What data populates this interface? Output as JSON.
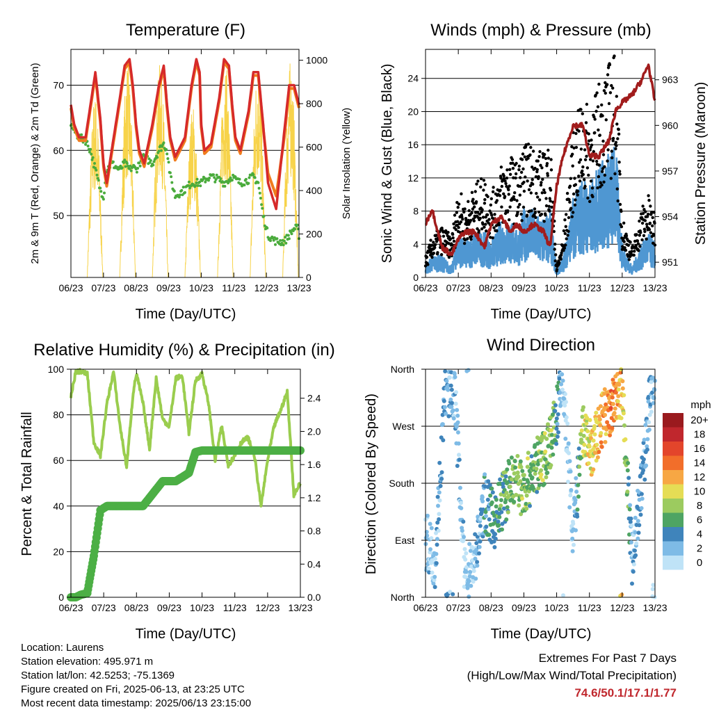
{
  "x_ticks": [
    "06/23",
    "07/23",
    "08/23",
    "09/23",
    "10/23",
    "11/23",
    "12/23",
    "13/23"
  ],
  "x_label": "Time (Day/UTC)",
  "meta": {
    "location": "Location: Laurens",
    "elevation": "Station elevation: 495.971 m",
    "latlon": "Station lat/lon: 42.5253; -75.1369",
    "created": "Figure created on Fri, 2025-06-13, at 23:25 UTC",
    "recent": "Most recent data timestamp: 2025/06/13 23:15:00"
  },
  "extremes": {
    "title": "Extremes For Past 7 Days",
    "subtitle": "(High/Low/Max Wind/Total Precipitation)",
    "value": "74.6/50.1/17.1/1.77"
  },
  "colors": {
    "temp_red": "#d62a2a",
    "temp_orange": "#f07c1e",
    "dewpoint_green": "#4aab3c",
    "solar_yellow": "#f7d34a",
    "wind_blue": "#4f97d2",
    "gust_black": "#000000",
    "pressure_maroon": "#a11c1c",
    "rh_lightgreen": "#9acd4e",
    "rain_green": "#4caf45"
  },
  "chart_data": [
    {
      "type": "line",
      "title": "Temperature (F)",
      "xlabel": "Time (Day/UTC)",
      "ylabel": "2m & 9m T (Red, Orange) & 2m Td (Green)",
      "y2label": "Solar Insolation (Yellow)",
      "ylim": [
        40.5,
        75.5
      ],
      "y2lim": [
        0,
        1050
      ],
      "yticks": [
        50,
        60,
        70
      ],
      "y2ticks": [
        0,
        200,
        400,
        600,
        800,
        1000
      ],
      "x": [
        0,
        0.1,
        0.25,
        0.45,
        0.6,
        0.75,
        0.9,
        1.0,
        1.1,
        1.25,
        1.5,
        1.65,
        1.8,
        1.9,
        2.0,
        2.1,
        2.25,
        2.5,
        2.7,
        2.85,
        2.95,
        3.05,
        3.2,
        3.5,
        3.7,
        3.85,
        3.95,
        4.0,
        4.1,
        4.3,
        4.55,
        4.7,
        4.85,
        4.95,
        5.05,
        5.2,
        5.45,
        5.6,
        5.75,
        5.9,
        6.05,
        6.3,
        6.55,
        6.7,
        6.85,
        6.95,
        7.0
      ],
      "series": [
        {
          "name": "2m T",
          "values": [
            67,
            64,
            62,
            62,
            67,
            72,
            65,
            58,
            55,
            60,
            68,
            73,
            74,
            70,
            64,
            60,
            58,
            64,
            70,
            73,
            67,
            62,
            59,
            62,
            70,
            74,
            72,
            64,
            60,
            61,
            68,
            74,
            73,
            67,
            62,
            60,
            66,
            72,
            72,
            64,
            55,
            51,
            63,
            70,
            70,
            68,
            67
          ]
        },
        {
          "name": "9m T",
          "values": [
            66.5,
            63.5,
            61.5,
            61.5,
            66.5,
            71.5,
            64.5,
            57.5,
            54.5,
            59.5,
            67.5,
            72.5,
            73.5,
            69.5,
            63.5,
            59.5,
            57.5,
            63.5,
            69.5,
            72.5,
            66.5,
            61.5,
            58.5,
            61.5,
            69.5,
            73.5,
            71.5,
            63.5,
            59.5,
            60.5,
            67.5,
            73.5,
            72.5,
            66.5,
            61.5,
            59.5,
            65.5,
            71.5,
            71.5,
            63.5,
            56.5,
            53,
            62,
            69.5,
            69.5,
            67.5,
            66.5
          ]
        },
        {
          "name": "2m Td",
          "values": [
            64,
            63,
            62,
            61.5,
            60,
            57,
            54,
            53,
            57,
            58,
            57,
            58,
            57,
            57.5,
            57,
            58,
            59,
            58,
            60,
            61,
            60,
            56,
            53,
            54,
            55,
            55,
            55,
            55,
            55.5,
            56,
            55.5,
            55,
            55.5,
            56,
            55.5,
            55,
            55.5,
            56,
            55,
            50,
            47,
            46,
            46,
            47,
            48,
            48,
            47
          ]
        }
      ],
      "solar": {
        "name": "Solar Insolation",
        "days": [
          0,
          1,
          2,
          3,
          4,
          5,
          6,
          7
        ],
        "peaks": [
          850,
          1000,
          1000,
          800,
          1000,
          1000,
          1000,
          1000
        ]
      }
    },
    {
      "type": "scatter",
      "title": "Winds (mph) & Pressure (mb)",
      "xlabel": "Time (Day/UTC)",
      "ylabel": "Sonic Wind & Gust (Blue, Black)",
      "y2label": "Station Pressure (Maroon)",
      "ylim": [
        0,
        27.5
      ],
      "y2lim": [
        950,
        965
      ],
      "yticks": [
        0,
        4,
        8,
        12,
        16,
        20,
        24
      ],
      "y2ticks": [
        951,
        954,
        957,
        960,
        963
      ],
      "x": [
        0,
        0.2,
        0.5,
        0.8,
        1.0,
        1.2,
        1.5,
        1.8,
        2.0,
        2.3,
        2.6,
        2.8,
        3.0,
        3.3,
        3.6,
        3.8,
        4.0,
        4.2,
        4.5,
        4.8,
        5.0,
        5.3,
        5.6,
        5.8,
        6.0,
        6.3,
        6.6,
        6.8,
        7.0
      ],
      "series": [
        {
          "name": "Wind",
          "values": [
            1,
            2,
            2,
            1,
            4,
            3,
            4,
            4,
            3,
            5,
            5,
            4,
            6,
            6,
            5,
            6,
            0.5,
            2,
            7,
            9,
            8,
            10,
            11,
            12,
            3,
            1,
            3,
            4,
            3
          ]
        },
        {
          "name": "Gust",
          "values": [
            2,
            4,
            5,
            4,
            9,
            7,
            9,
            10,
            8,
            11,
            12,
            11,
            13,
            13,
            12,
            14,
            1,
            4,
            14,
            18,
            16,
            19,
            21,
            22,
            6,
            3,
            7,
            8,
            6
          ]
        },
        {
          "name": "Station Pressure",
          "values": [
            953.5,
            954.5,
            952,
            951.5,
            952.5,
            953,
            953,
            952,
            953.5,
            954,
            953,
            953.5,
            953,
            953.5,
            953,
            952,
            956,
            958,
            960,
            960,
            958,
            958,
            959,
            961,
            961.5,
            962,
            963,
            964,
            961.5
          ]
        }
      ]
    },
    {
      "type": "line",
      "title": "Relative Humidity (%) & Precipitation (in)",
      "xlabel": "Time (Day/UTC)",
      "ylabel": "Percent & Total Rainfall",
      "ylim": [
        0,
        100
      ],
      "y2lim": [
        0,
        2.75
      ],
      "yticks": [
        0,
        20,
        40,
        60,
        80,
        100
      ],
      "y2ticks": [
        0.0,
        0.4,
        0.8,
        1.2,
        1.6,
        2.0,
        2.4
      ],
      "x": [
        0,
        0.15,
        0.3,
        0.5,
        0.7,
        0.9,
        1.1,
        1.3,
        1.5,
        1.7,
        1.9,
        2.0,
        2.2,
        2.4,
        2.6,
        2.8,
        3.0,
        3.2,
        3.4,
        3.6,
        3.8,
        4.0,
        4.2,
        4.4,
        4.6,
        4.8,
        5.0,
        5.2,
        5.4,
        5.6,
        5.8,
        6.0,
        6.2,
        6.4,
        6.6,
        6.8,
        7.0
      ],
      "series": [
        {
          "name": "Relative Humidity",
          "values": [
            88,
            99,
            99,
            98,
            68,
            62,
            85,
            99,
            75,
            57,
            90,
            98,
            85,
            65,
            96,
            78,
            75,
            96,
            97,
            72,
            95,
            98,
            85,
            60,
            75,
            58,
            62,
            68,
            70,
            62,
            40,
            60,
            75,
            82,
            90,
            45,
            50
          ]
        },
        {
          "name": "Total Rainfall",
          "values": [
            0,
            0,
            0.03,
            0.05,
            0.5,
            1.05,
            1.1,
            1.1,
            1.1,
            1.1,
            1.1,
            1.1,
            1.1,
            1.2,
            1.3,
            1.4,
            1.4,
            1.4,
            1.45,
            1.5,
            1.75,
            1.77,
            1.77,
            1.77,
            1.77,
            1.77,
            1.77,
            1.77,
            1.77,
            1.77,
            1.77,
            1.77,
            1.77,
            1.77,
            1.77,
            1.77,
            1.77
          ]
        }
      ]
    },
    {
      "type": "scatter",
      "title": "Wind Direction",
      "xlabel": "Time (Day/UTC)",
      "ylabel": "Direction (Colored By Speed)",
      "ytick_labels": [
        "North",
        "East",
        "South",
        "West",
        "North"
      ],
      "yticks": [
        0,
        90,
        180,
        270,
        360
      ],
      "legend": {
        "title": "mph",
        "labels": [
          "20+",
          "18",
          "16",
          "14",
          "12",
          "10",
          "8",
          "6",
          "4",
          "2",
          "0"
        ],
        "colors": [
          "#9a1a1e",
          "#c0272d",
          "#e3452b",
          "#f26e2a",
          "#f7a744",
          "#e5dd55",
          "#9ccb5f",
          "#4ea463",
          "#3f84bb",
          "#7ebbe6",
          "#bfe3f7"
        ]
      },
      "x": [
        0,
        0.3,
        0.6,
        0.9,
        1.2,
        1.5,
        1.8,
        2.1,
        2.4,
        2.7,
        3.0,
        3.3,
        3.6,
        3.9,
        4.2,
        4.5,
        4.8,
        5.1,
        5.4,
        5.7,
        6.0,
        6.3,
        6.6,
        6.9
      ],
      "series": [
        {
          "name": "Direction",
          "values": [
            90,
            60,
            330,
            320,
            30,
            60,
            150,
            120,
            160,
            190,
            170,
            200,
            220,
            260,
            340,
            100,
            260,
            230,
            280,
            300,
            330,
            60,
            180,
            340
          ]
        },
        {
          "name": "Speed",
          "values": [
            1,
            2,
            3,
            2,
            1,
            1,
            4,
            5,
            6,
            7,
            8,
            6,
            8,
            7,
            1,
            0,
            9,
            10,
            12,
            14,
            11,
            2,
            3,
            2
          ]
        }
      ]
    }
  ]
}
